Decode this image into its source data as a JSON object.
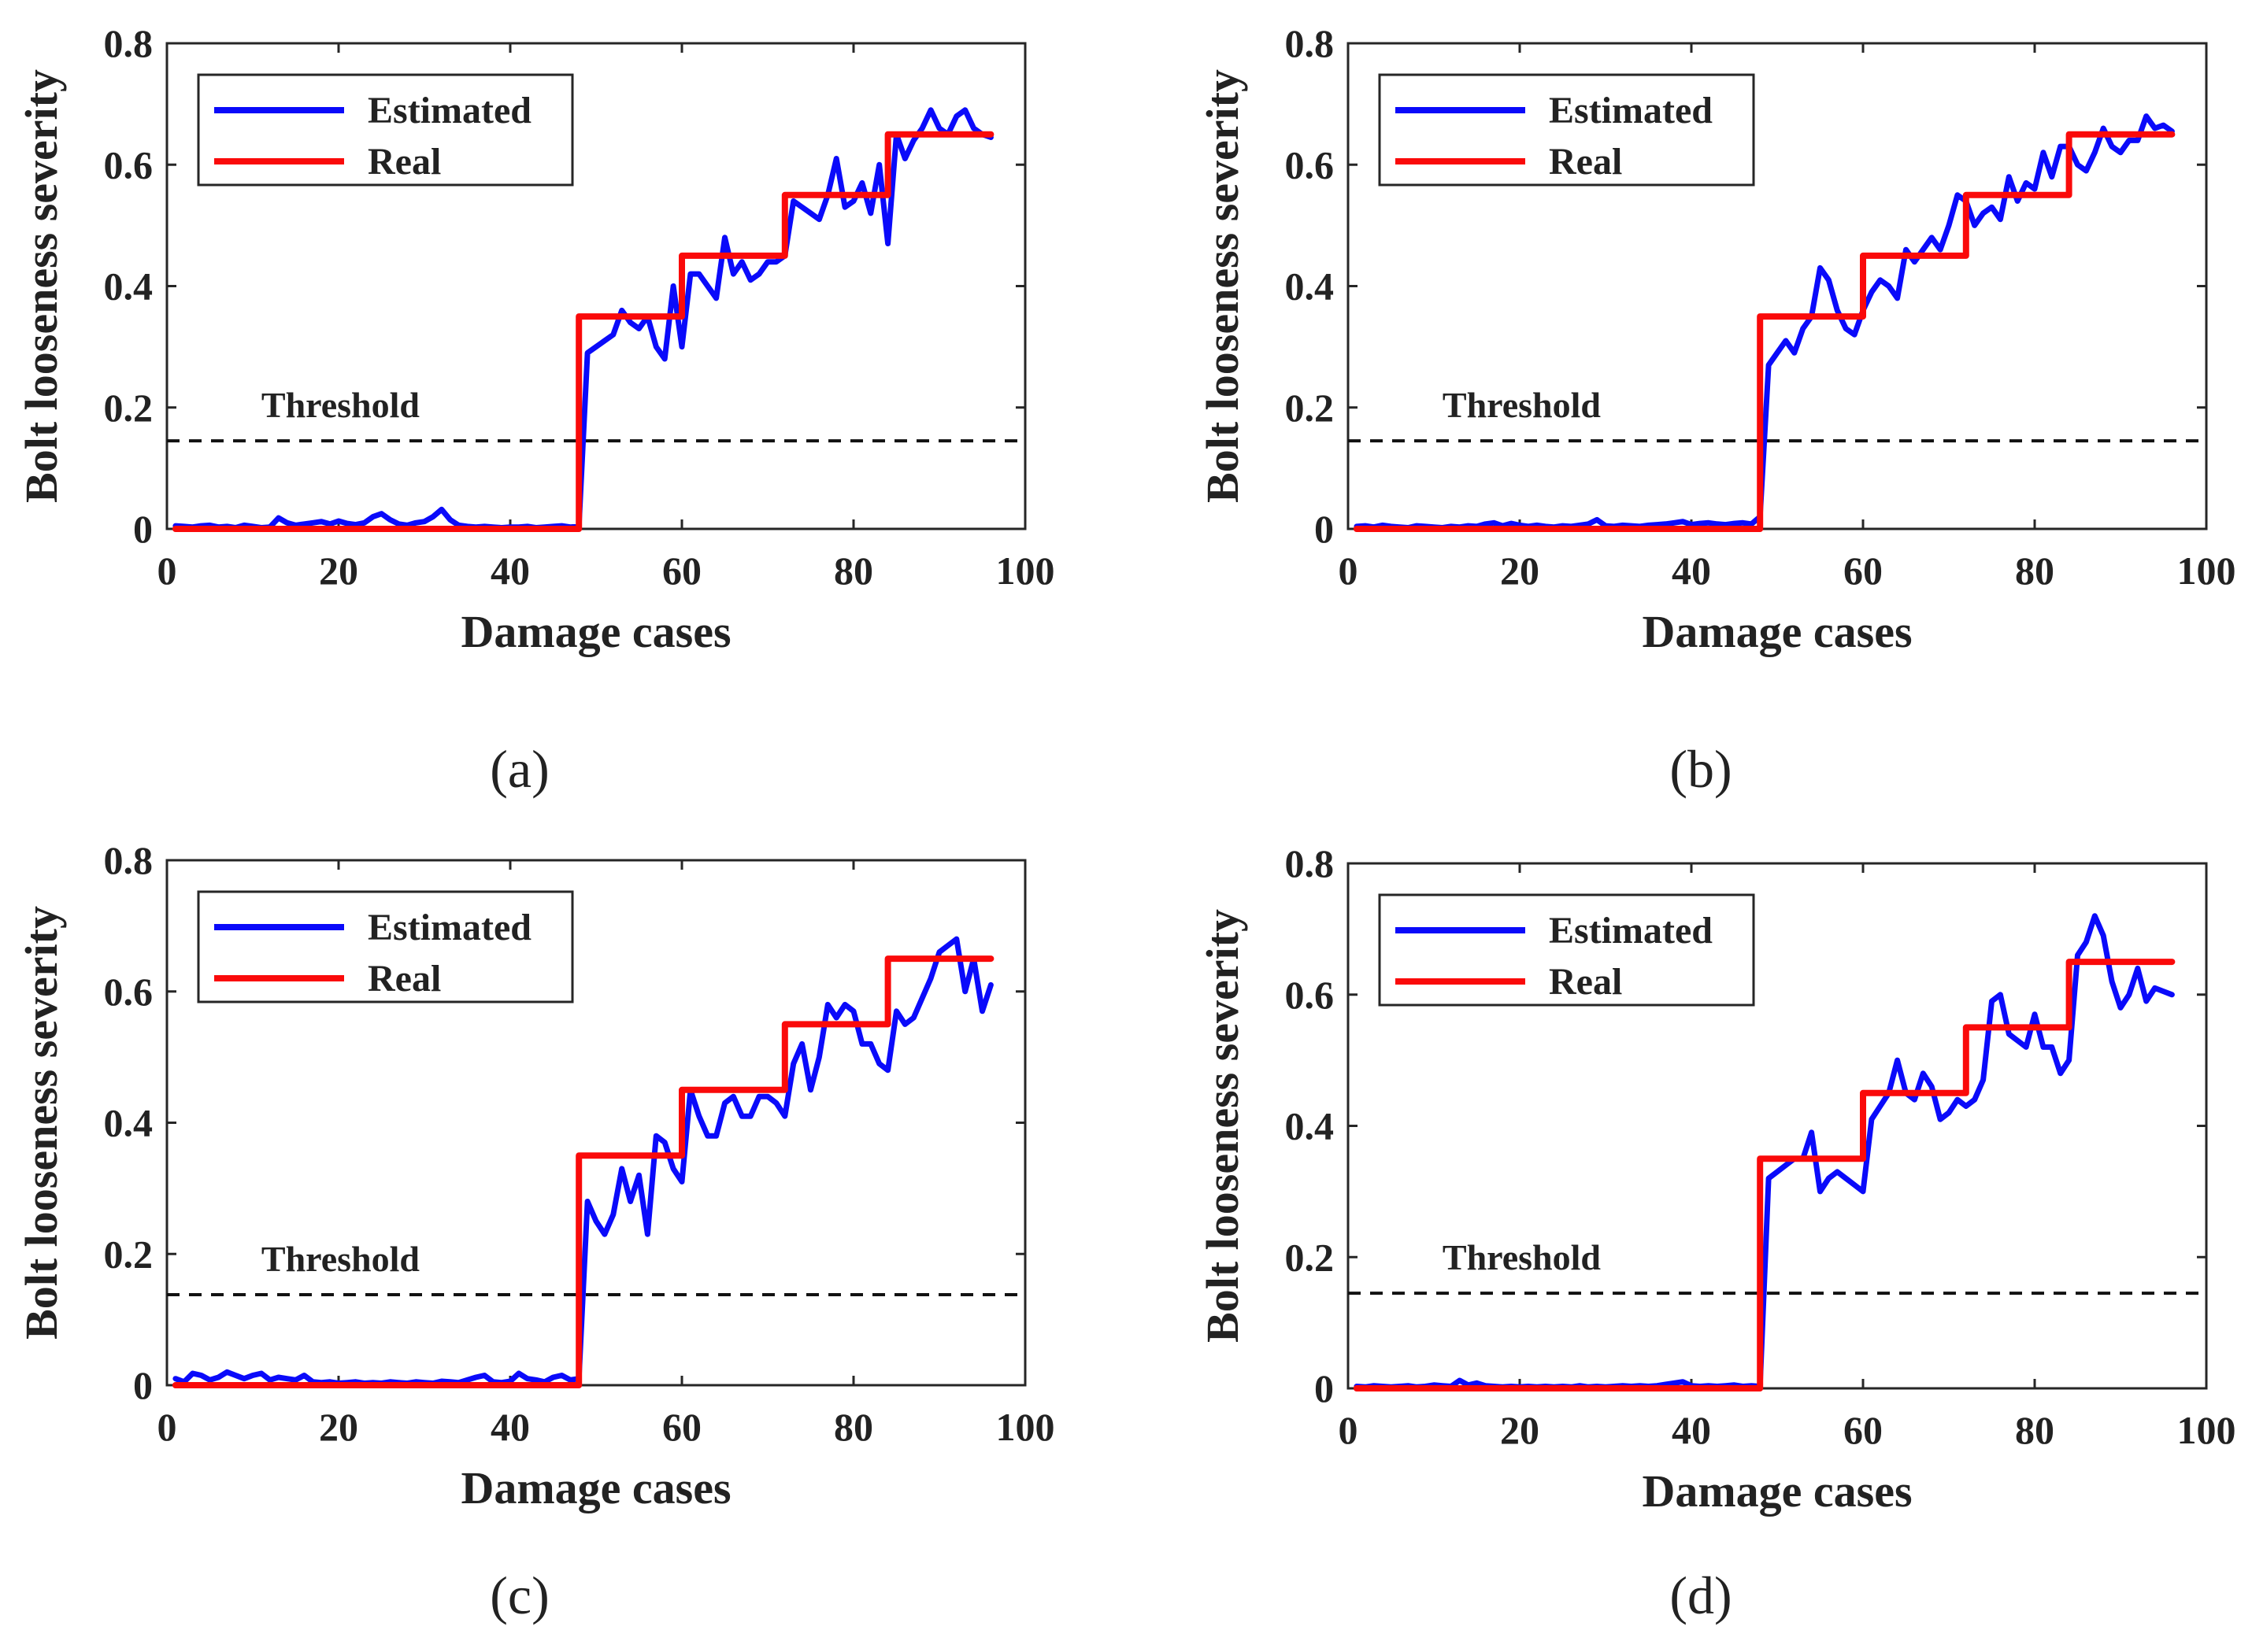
{
  "figure": {
    "colors": {
      "estimated": "#0a0afa",
      "real": "#fa0a0a",
      "threshold": "#111111",
      "axis": "#262626"
    }
  },
  "chart_data": [
    {
      "type": "line",
      "panel_label": "(a)",
      "xlabel": "Damage cases",
      "ylabel": "Bolt looseness severity",
      "xlim": [
        0,
        100
      ],
      "ylim": [
        0,
        0.8
      ],
      "xticks": [
        0,
        20,
        40,
        60,
        80,
        100
      ],
      "xtick_labels": [
        "0",
        "20",
        "40",
        "60",
        "80",
        "100"
      ],
      "yticks": [
        0,
        0.2,
        0.4,
        0.6,
        0.8
      ],
      "ytick_labels": [
        "0",
        "0.2",
        "0.4",
        "0.6",
        "0.8"
      ],
      "legend": {
        "placement": "top-left",
        "entries": [
          "Estimated",
          "Real"
        ]
      },
      "threshold": {
        "label": "Threshold",
        "value": 0.145
      },
      "series": [
        {
          "name": "Estimated",
          "x": [
            1,
            2,
            3,
            4,
            5,
            6,
            7,
            8,
            9,
            10,
            11,
            12,
            13,
            14,
            15,
            16,
            17,
            18,
            19,
            20,
            21,
            22,
            23,
            24,
            25,
            26,
            27,
            28,
            29,
            30,
            31,
            32,
            33,
            34,
            35,
            36,
            37,
            38,
            39,
            40,
            41,
            42,
            43,
            44,
            45,
            46,
            47,
            48,
            49,
            50,
            51,
            52,
            53,
            54,
            55,
            56,
            57,
            58,
            59,
            60,
            61,
            62,
            63,
            64,
            65,
            66,
            67,
            68,
            69,
            70,
            71,
            72,
            73,
            74,
            75,
            76,
            77,
            78,
            79,
            80,
            81,
            82,
            83,
            84,
            85,
            86,
            87,
            88,
            89,
            90,
            91,
            92,
            93,
            94,
            95,
            96
          ],
          "values": [
            0.005,
            0.004,
            0.003,
            0.005,
            0.006,
            0.003,
            0.004,
            0.002,
            0.006,
            0.004,
            0.002,
            0.003,
            0.018,
            0.01,
            0.006,
            0.008,
            0.01,
            0.012,
            0.008,
            0.013,
            0.009,
            0.007,
            0.01,
            0.02,
            0.025,
            0.015,
            0.008,
            0.006,
            0.01,
            0.012,
            0.02,
            0.032,
            0.015,
            0.006,
            0.004,
            0.003,
            0.004,
            0.003,
            0.002,
            0.003,
            0.003,
            0.004,
            0.002,
            0.003,
            0.004,
            0.005,
            0.003,
            0.004,
            0.29,
            0.3,
            0.31,
            0.32,
            0.36,
            0.34,
            0.33,
            0.35,
            0.3,
            0.28,
            0.4,
            0.3,
            0.42,
            0.42,
            0.4,
            0.38,
            0.48,
            0.42,
            0.44,
            0.41,
            0.42,
            0.44,
            0.44,
            0.45,
            0.54,
            0.53,
            0.52,
            0.51,
            0.55,
            0.61,
            0.53,
            0.54,
            0.57,
            0.52,
            0.6,
            0.47,
            0.65,
            0.61,
            0.64,
            0.66,
            0.69,
            0.66,
            0.65,
            0.68,
            0.69,
            0.66,
            0.65,
            0.645
          ]
        },
        {
          "name": "Real",
          "x": [
            1,
            48,
            48,
            60,
            60,
            72,
            72,
            84,
            84,
            96
          ],
          "values": [
            0,
            0,
            0.35,
            0.35,
            0.45,
            0.45,
            0.55,
            0.55,
            0.65,
            0.65
          ]
        }
      ]
    },
    {
      "type": "line",
      "panel_label": "(b)",
      "xlabel": "Damage cases",
      "ylabel": "Bolt looseness severity",
      "xlim": [
        0,
        100
      ],
      "ylim": [
        0,
        0.8
      ],
      "xticks": [
        0,
        20,
        40,
        60,
        80,
        100
      ],
      "xtick_labels": [
        "0",
        "20",
        "40",
        "60",
        "80",
        "100"
      ],
      "yticks": [
        0,
        0.2,
        0.4,
        0.6,
        0.8
      ],
      "ytick_labels": [
        "0",
        "0.2",
        "0.4",
        "0.6",
        "0.8"
      ],
      "legend": {
        "placement": "top-left",
        "entries": [
          "Estimated",
          "Real"
        ]
      },
      "threshold": {
        "label": "Threshold",
        "value": 0.145
      },
      "series": [
        {
          "name": "Estimated",
          "x": [
            1,
            2,
            3,
            4,
            5,
            6,
            7,
            8,
            9,
            10,
            11,
            12,
            13,
            14,
            15,
            16,
            17,
            18,
            19,
            20,
            21,
            22,
            23,
            24,
            25,
            26,
            27,
            28,
            29,
            30,
            31,
            32,
            33,
            34,
            35,
            36,
            37,
            38,
            39,
            40,
            41,
            42,
            43,
            44,
            45,
            46,
            47,
            48,
            49,
            50,
            51,
            52,
            53,
            54,
            55,
            56,
            57,
            58,
            59,
            60,
            61,
            62,
            63,
            64,
            65,
            66,
            67,
            68,
            69,
            70,
            71,
            72,
            73,
            74,
            75,
            76,
            77,
            78,
            79,
            80,
            81,
            82,
            83,
            84,
            85,
            86,
            87,
            88,
            89,
            90,
            91,
            92,
            93,
            94,
            95,
            96
          ],
          "values": [
            0.004,
            0.005,
            0.003,
            0.006,
            0.004,
            0.003,
            0.002,
            0.005,
            0.004,
            0.003,
            0.002,
            0.004,
            0.003,
            0.005,
            0.004,
            0.008,
            0.01,
            0.005,
            0.009,
            0.006,
            0.004,
            0.006,
            0.004,
            0.003,
            0.005,
            0.004,
            0.006,
            0.008,
            0.015,
            0.005,
            0.004,
            0.006,
            0.005,
            0.004,
            0.006,
            0.007,
            0.008,
            0.01,
            0.012,
            0.007,
            0.009,
            0.01,
            0.008,
            0.007,
            0.009,
            0.01,
            0.008,
            0.02,
            0.27,
            0.29,
            0.31,
            0.29,
            0.33,
            0.35,
            0.43,
            0.41,
            0.36,
            0.33,
            0.32,
            0.36,
            0.39,
            0.41,
            0.4,
            0.38,
            0.46,
            0.44,
            0.46,
            0.48,
            0.46,
            0.5,
            0.55,
            0.54,
            0.5,
            0.52,
            0.53,
            0.51,
            0.58,
            0.54,
            0.57,
            0.56,
            0.62,
            0.58,
            0.63,
            0.63,
            0.6,
            0.59,
            0.62,
            0.66,
            0.63,
            0.62,
            0.64,
            0.64,
            0.68,
            0.66,
            0.665,
            0.655
          ]
        },
        {
          "name": "Real",
          "x": [
            1,
            48,
            48,
            60,
            60,
            72,
            72,
            84,
            84,
            96
          ],
          "values": [
            0,
            0,
            0.35,
            0.35,
            0.45,
            0.45,
            0.55,
            0.55,
            0.65,
            0.65
          ]
        }
      ]
    },
    {
      "type": "line",
      "panel_label": "(c)",
      "xlabel": "Damage cases",
      "ylabel": "Bolt looseness severity",
      "xlim": [
        0,
        100
      ],
      "ylim": [
        0,
        0.8
      ],
      "xticks": [
        0,
        20,
        40,
        60,
        80,
        100
      ],
      "xtick_labels": [
        "0",
        "20",
        "40",
        "60",
        "80",
        "100"
      ],
      "yticks": [
        0,
        0.2,
        0.4,
        0.6,
        0.8
      ],
      "ytick_labels": [
        "0",
        "0.2",
        "0.4",
        "0.6",
        "0.8"
      ],
      "legend": {
        "placement": "top-left",
        "entries": [
          "Estimated",
          "Real"
        ]
      },
      "threshold": {
        "label": "Threshold",
        "value": 0.138
      },
      "series": [
        {
          "name": "Estimated",
          "x": [
            1,
            2,
            3,
            4,
            5,
            6,
            7,
            8,
            9,
            10,
            11,
            12,
            13,
            14,
            15,
            16,
            17,
            18,
            19,
            20,
            21,
            22,
            23,
            24,
            25,
            26,
            27,
            28,
            29,
            30,
            31,
            32,
            33,
            34,
            35,
            36,
            37,
            38,
            39,
            40,
            41,
            42,
            43,
            44,
            45,
            46,
            47,
            48,
            49,
            50,
            51,
            52,
            53,
            54,
            55,
            56,
            57,
            58,
            59,
            60,
            61,
            62,
            63,
            64,
            65,
            66,
            67,
            68,
            69,
            70,
            71,
            72,
            73,
            74,
            75,
            76,
            77,
            78,
            79,
            80,
            81,
            82,
            83,
            84,
            85,
            86,
            87,
            88,
            89,
            90,
            91,
            92,
            93,
            94,
            95,
            96
          ],
          "values": [
            0.01,
            0.005,
            0.018,
            0.015,
            0.008,
            0.012,
            0.02,
            0.015,
            0.01,
            0.015,
            0.018,
            0.008,
            0.012,
            0.01,
            0.008,
            0.015,
            0.005,
            0.004,
            0.005,
            0.003,
            0.004,
            0.005,
            0.003,
            0.004,
            0.003,
            0.005,
            0.004,
            0.003,
            0.005,
            0.004,
            0.003,
            0.006,
            0.005,
            0.004,
            0.008,
            0.012,
            0.015,
            0.005,
            0.004,
            0.006,
            0.018,
            0.01,
            0.008,
            0.005,
            0.012,
            0.015,
            0.008,
            0.01,
            0.28,
            0.25,
            0.23,
            0.26,
            0.33,
            0.28,
            0.32,
            0.23,
            0.38,
            0.37,
            0.33,
            0.31,
            0.45,
            0.41,
            0.38,
            0.38,
            0.43,
            0.44,
            0.41,
            0.41,
            0.44,
            0.44,
            0.43,
            0.41,
            0.49,
            0.52,
            0.45,
            0.5,
            0.58,
            0.56,
            0.58,
            0.57,
            0.52,
            0.52,
            0.49,
            0.48,
            0.57,
            0.55,
            0.56,
            0.59,
            0.62,
            0.66,
            0.67,
            0.68,
            0.6,
            0.65,
            0.57,
            0.61
          ]
        },
        {
          "name": "Real",
          "x": [
            1,
            48,
            48,
            60,
            60,
            72,
            72,
            84,
            84,
            96
          ],
          "values": [
            0,
            0,
            0.35,
            0.35,
            0.45,
            0.45,
            0.55,
            0.55,
            0.65,
            0.65
          ]
        }
      ]
    },
    {
      "type": "line",
      "panel_label": "(d)",
      "xlabel": "Damage cases",
      "ylabel": "Bolt looseness severity",
      "xlim": [
        0,
        100
      ],
      "ylim": [
        0,
        0.8
      ],
      "xticks": [
        0,
        20,
        40,
        60,
        80,
        100
      ],
      "xtick_labels": [
        "0",
        "20",
        "40",
        "60",
        "80",
        "100"
      ],
      "yticks": [
        0,
        0.2,
        0.4,
        0.6,
        0.8
      ],
      "ytick_labels": [
        "0",
        "0.2",
        "0.4",
        "0.6",
        "0.8"
      ],
      "legend": {
        "placement": "top-left",
        "entries": [
          "Estimated",
          "Real"
        ]
      },
      "threshold": {
        "label": "Threshold",
        "value": 0.145
      },
      "series": [
        {
          "name": "Estimated",
          "x": [
            1,
            2,
            3,
            4,
            5,
            6,
            7,
            8,
            9,
            10,
            11,
            12,
            13,
            14,
            15,
            16,
            17,
            18,
            19,
            20,
            21,
            22,
            23,
            24,
            25,
            26,
            27,
            28,
            29,
            30,
            31,
            32,
            33,
            34,
            35,
            36,
            37,
            38,
            39,
            40,
            41,
            42,
            43,
            44,
            45,
            46,
            47,
            48,
            49,
            50,
            51,
            52,
            53,
            54,
            55,
            56,
            57,
            58,
            59,
            60,
            61,
            62,
            63,
            64,
            65,
            66,
            67,
            68,
            69,
            70,
            71,
            72,
            73,
            74,
            75,
            76,
            77,
            78,
            79,
            80,
            81,
            82,
            83,
            84,
            85,
            86,
            87,
            88,
            89,
            90,
            91,
            92,
            93,
            94,
            95,
            96
          ],
          "values": [
            0.003,
            0.002,
            0.004,
            0.003,
            0.002,
            0.003,
            0.004,
            0.002,
            0.003,
            0.005,
            0.004,
            0.003,
            0.012,
            0.005,
            0.008,
            0.004,
            0.003,
            0.002,
            0.003,
            0.002,
            0.003,
            0.002,
            0.003,
            0.002,
            0.003,
            0.002,
            0.004,
            0.002,
            0.003,
            0.002,
            0.003,
            0.004,
            0.003,
            0.004,
            0.003,
            0.004,
            0.006,
            0.008,
            0.01,
            0.004,
            0.003,
            0.004,
            0.003,
            0.004,
            0.005,
            0.003,
            0.004,
            0.003,
            0.32,
            0.33,
            0.34,
            0.35,
            0.35,
            0.39,
            0.3,
            0.32,
            0.33,
            0.32,
            0.31,
            0.3,
            0.41,
            0.43,
            0.45,
            0.5,
            0.45,
            0.44,
            0.48,
            0.46,
            0.41,
            0.42,
            0.44,
            0.43,
            0.44,
            0.47,
            0.59,
            0.6,
            0.54,
            0.53,
            0.52,
            0.57,
            0.52,
            0.52,
            0.48,
            0.5,
            0.66,
            0.68,
            0.72,
            0.69,
            0.62,
            0.58,
            0.6,
            0.64,
            0.59,
            0.61,
            0.605,
            0.6
          ]
        },
        {
          "name": "Real",
          "x": [
            1,
            48,
            48,
            60,
            60,
            72,
            72,
            84,
            84,
            96
          ],
          "values": [
            0,
            0,
            0.35,
            0.35,
            0.45,
            0.45,
            0.55,
            0.55,
            0.65,
            0.65
          ]
        }
      ]
    }
  ]
}
